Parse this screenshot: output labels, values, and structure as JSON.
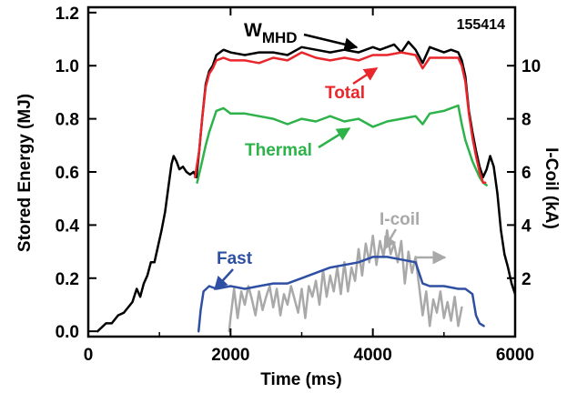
{
  "chart_data": {
    "type": "line",
    "shot_number": "155414",
    "xlabel": "Time (ms)",
    "ylabel_left": "Stored Energy (MJ)",
    "ylabel_right": "I-Coil (kA)",
    "xlim": [
      0,
      6000
    ],
    "ylim_left": [
      -0.02,
      1.22
    ],
    "ylim_right": [
      -0.2,
      12.2
    ],
    "x_ticks": [
      0,
      2000,
      4000,
      6000
    ],
    "y_ticks_left": [
      0.0,
      0.2,
      0.4,
      0.6,
      0.8,
      1.0,
      1.2
    ],
    "y_tick_labels_left": [
      "0.0",
      "0.2",
      "0.4",
      "0.6",
      "0.8",
      "1.0",
      "1.2"
    ],
    "y_ticks_right": [
      2,
      4,
      6,
      8,
      10
    ],
    "annotations": {
      "wmhd_main": "W",
      "wmhd_sub": "MHD",
      "total": "Total",
      "thermal": "Thermal",
      "fast": "Fast",
      "icoil": "I-coil"
    },
    "series": [
      {
        "label": "W_MHD",
        "color": "#000000",
        "axis": "left",
        "x": [
          130,
          250,
          330,
          420,
          500,
          560,
          620,
          680,
          730,
          780,
          830,
          880,
          930,
          980,
          1030,
          1080,
          1130,
          1170,
          1200,
          1240,
          1280,
          1330,
          1380,
          1430,
          1480,
          1520,
          1560,
          1600,
          1650,
          1700,
          1750,
          1800,
          1900,
          2000,
          2200,
          2400,
          2600,
          2800,
          3000,
          3200,
          3400,
          3600,
          3800,
          4000,
          4100,
          4200,
          4300,
          4400,
          4500,
          4600,
          4700,
          4750,
          4800,
          5000,
          5100,
          5200,
          5250,
          5300,
          5350,
          5400,
          5450,
          5500,
          5550,
          5600,
          5650,
          5700,
          5750,
          5800,
          5850,
          5900,
          5950,
          6000
        ],
        "y": [
          0.0,
          0.03,
          0.03,
          0.06,
          0.07,
          0.09,
          0.11,
          0.16,
          0.13,
          0.18,
          0.21,
          0.26,
          0.26,
          0.32,
          0.38,
          0.45,
          0.55,
          0.63,
          0.66,
          0.64,
          0.61,
          0.62,
          0.6,
          0.59,
          0.6,
          0.58,
          0.68,
          0.8,
          0.93,
          0.98,
          1.0,
          1.04,
          1.06,
          1.05,
          1.04,
          1.05,
          1.05,
          1.04,
          1.07,
          1.06,
          1.05,
          1.06,
          1.05,
          1.07,
          1.06,
          1.07,
          1.08,
          1.05,
          1.09,
          1.06,
          1.01,
          1.04,
          1.07,
          1.05,
          1.06,
          1.05,
          1.02,
          0.96,
          0.83,
          0.75,
          0.68,
          0.62,
          0.58,
          0.61,
          0.66,
          0.62,
          0.52,
          0.38,
          0.29,
          0.24,
          0.18,
          0.14
        ]
      },
      {
        "label": "Total",
        "color": "#e8262b",
        "axis": "left",
        "x": [
          1500,
          1560,
          1600,
          1650,
          1700,
          1750,
          1800,
          1900,
          2000,
          2200,
          2400,
          2600,
          2800,
          3000,
          3200,
          3400,
          3600,
          3800,
          4000,
          4200,
          4400,
          4600,
          4700,
          4800,
          5000,
          5200,
          5250,
          5300,
          5350,
          5400,
          5450,
          5500,
          5550,
          5580
        ],
        "y": [
          0.58,
          0.68,
          0.8,
          0.92,
          0.97,
          0.99,
          1.02,
          1.03,
          1.02,
          1.02,
          1.01,
          1.03,
          1.02,
          1.05,
          1.03,
          1.02,
          1.03,
          1.02,
          1.04,
          1.04,
          1.05,
          1.04,
          0.99,
          1.03,
          1.03,
          1.03,
          1.0,
          0.94,
          0.82,
          0.73,
          0.66,
          0.6,
          0.56,
          0.56
        ]
      },
      {
        "label": "Thermal",
        "color": "#2db34a",
        "axis": "left",
        "x": [
          1530,
          1600,
          1650,
          1700,
          1750,
          1800,
          1900,
          2000,
          2200,
          2400,
          2600,
          2800,
          3000,
          3200,
          3400,
          3600,
          3800,
          4000,
          4200,
          4400,
          4600,
          4700,
          4800,
          5000,
          5100,
          5200,
          5250,
          5300,
          5350,
          5400,
          5450,
          5500,
          5550,
          5600
        ],
        "y": [
          0.56,
          0.64,
          0.7,
          0.75,
          0.79,
          0.83,
          0.84,
          0.82,
          0.82,
          0.81,
          0.8,
          0.78,
          0.8,
          0.79,
          0.81,
          0.79,
          0.8,
          0.77,
          0.79,
          0.8,
          0.81,
          0.78,
          0.82,
          0.83,
          0.84,
          0.85,
          0.78,
          0.72,
          0.68,
          0.64,
          0.61,
          0.58,
          0.56,
          0.55
        ]
      },
      {
        "label": "Fast",
        "color": "#2e4fa3",
        "axis": "left",
        "x": [
          1550,
          1580,
          1620,
          1700,
          1800,
          2000,
          2200,
          2400,
          2600,
          2800,
          3000,
          3200,
          3400,
          3600,
          3800,
          4000,
          4200,
          4400,
          4600,
          4700,
          4800,
          5000,
          5200,
          5300,
          5400,
          5450,
          5500,
          5560
        ],
        "y": [
          0.0,
          0.08,
          0.15,
          0.17,
          0.16,
          0.17,
          0.16,
          0.17,
          0.18,
          0.18,
          0.2,
          0.22,
          0.24,
          0.25,
          0.26,
          0.28,
          0.28,
          0.27,
          0.26,
          0.18,
          0.17,
          0.17,
          0.16,
          0.16,
          0.14,
          0.06,
          0.03,
          0.02
        ]
      },
      {
        "label": "I-coil",
        "color": "#a9a9a9",
        "axis": "right",
        "x": [
          1980,
          2000,
          2050,
          2100,
          2150,
          2200,
          2250,
          2300,
          2350,
          2400,
          2450,
          2500,
          2550,
          2600,
          2650,
          2700,
          2750,
          2800,
          2850,
          2900,
          2950,
          3000,
          3050,
          3100,
          3150,
          3200,
          3250,
          3300,
          3350,
          3400,
          3450,
          3500,
          3550,
          3600,
          3650,
          3700,
          3750,
          3800,
          3850,
          3900,
          3950,
          4000,
          4050,
          4100,
          4150,
          4200,
          4250,
          4300,
          4350,
          4400,
          4450,
          4500,
          4550,
          4600,
          4650,
          4700,
          4750,
          4800,
          4850,
          4900,
          4950,
          5000,
          5050,
          5100,
          5150,
          5200,
          5250
        ],
        "y": [
          0.0,
          0.5,
          1.6,
          0.5,
          1.5,
          1.0,
          1.7,
          1.2,
          0.6,
          1.5,
          0.8,
          1.3,
          1.7,
          0.9,
          1.6,
          0.6,
          1.4,
          1.0,
          1.7,
          1.2,
          0.7,
          1.6,
          0.5,
          1.7,
          1.3,
          1.9,
          1.0,
          2.3,
          1.3,
          2.1,
          1.5,
          2.4,
          1.4,
          2.6,
          1.5,
          2.4,
          1.9,
          3.1,
          2.1,
          3.3,
          2.6,
          3.6,
          2.5,
          3.4,
          2.8,
          3.8,
          2.9,
          3.3,
          2.6,
          3.4,
          1.8,
          3.0,
          2.2,
          2.8,
          1.7,
          0.6,
          1.5,
          0.2,
          1.2,
          0.7,
          1.5,
          0.5,
          1.1,
          0.4,
          1.3,
          0.2,
          0.9
        ]
      }
    ]
  }
}
